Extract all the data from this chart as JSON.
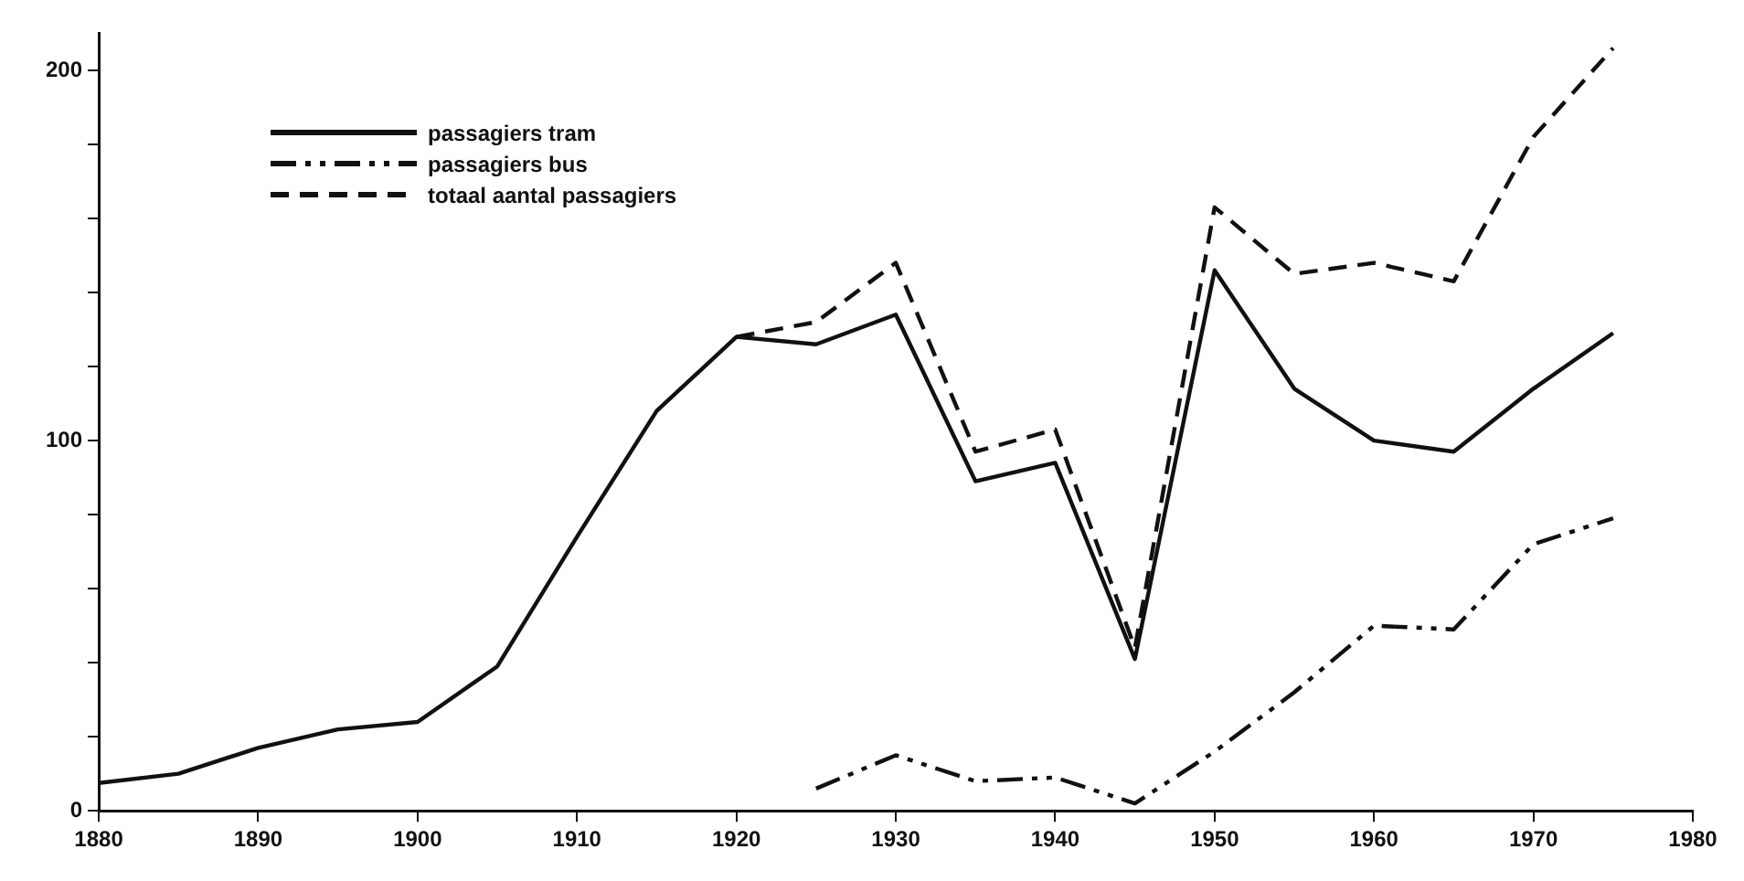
{
  "chart_data": {
    "type": "line",
    "xlim": [
      1880,
      1980
    ],
    "xticks": [
      1880,
      1890,
      1900,
      1910,
      1920,
      1930,
      1940,
      1950,
      1960,
      1970,
      1980
    ],
    "ylim": [
      0,
      210
    ],
    "yticks": [
      0,
      {
        "value": 20,
        "label": null
      },
      {
        "value": 40,
        "label": null
      },
      {
        "value": 60,
        "label": null
      },
      {
        "value": 80,
        "label": null
      },
      100,
      {
        "value": 120,
        "label": null
      },
      {
        "value": 140,
        "label": null
      },
      {
        "value": 160,
        "label": null
      },
      {
        "value": 180,
        "label": null
      },
      200
    ],
    "grid": false,
    "legend": "top left",
    "marker": "none",
    "series": [
      {
        "name": "passagiers tram",
        "color": "#111111",
        "line_style": "solid",
        "x": [
          1880,
          1885,
          1890,
          1895,
          1900,
          1905,
          1910,
          1915,
          1920,
          1925,
          1930,
          1935,
          1940,
          1945,
          1950,
          1955,
          1960,
          1965,
          1970,
          1975
        ],
        "values": [
          7.5,
          10,
          17,
          22,
          24,
          39,
          74,
          108,
          128,
          126,
          134,
          89,
          94,
          41,
          146,
          114,
          100,
          97,
          114,
          129
        ]
      },
      {
        "name": "passagiers bus",
        "color": "#111111",
        "line_style": "dotted",
        "x": [
          1925,
          1930,
          1935,
          1940,
          1945,
          1950,
          1955,
          1960,
          1965,
          1970,
          1975
        ],
        "values": [
          6,
          15,
          8,
          9,
          2,
          16,
          32,
          50,
          49,
          72,
          79
        ]
      },
      {
        "name": "totaal aantal passagiers",
        "color": "#111111",
        "line_style": "dashed",
        "x": [
          1920,
          1925,
          1930,
          1935,
          1940,
          1945,
          1950,
          1955,
          1960,
          1965,
          1970,
          1975
        ],
        "values": [
          128,
          132,
          148,
          97,
          103,
          44,
          163,
          145,
          148,
          143,
          182,
          206
        ]
      }
    ]
  }
}
